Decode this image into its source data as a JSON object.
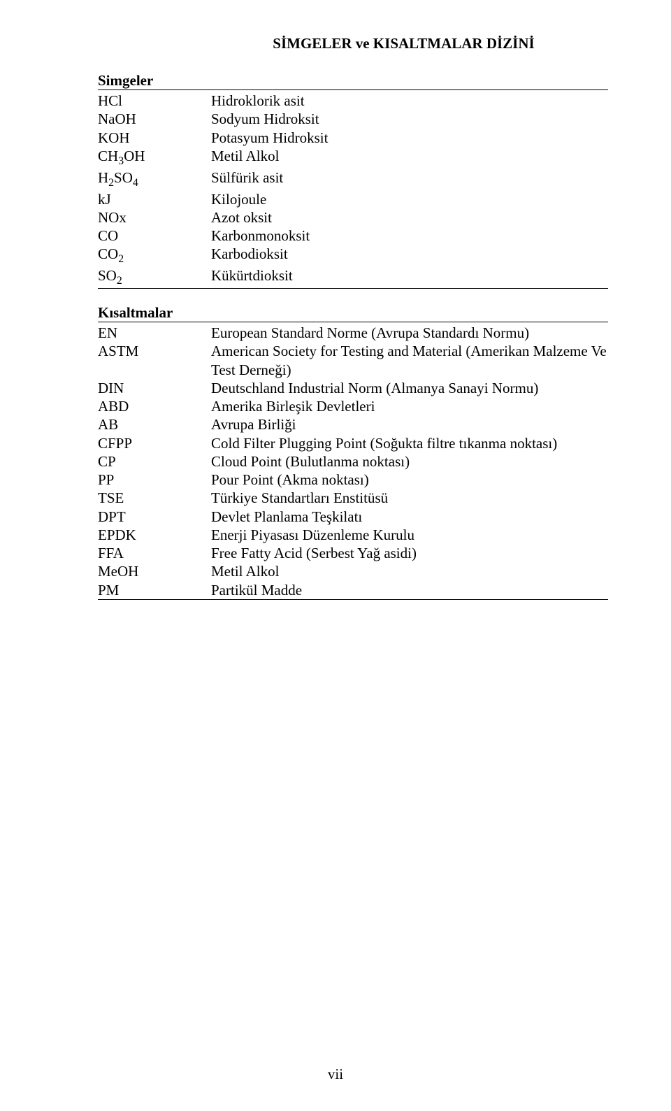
{
  "title": "SİMGELER ve KISALTMALAR DİZİNİ",
  "simgeler": {
    "heading": "Simgeler",
    "rows": [
      {
        "sym": "HCl",
        "def": "Hidroklorik asit"
      },
      {
        "sym": "NaOH",
        "def": "Sodyum Hidroksit"
      },
      {
        "sym": "KOH",
        "def": "Potasyum Hidroksit"
      },
      {
        "sym": "CH3OH",
        "sub": [
          [
            "CH",
            "3",
            "OH"
          ]
        ],
        "def": "Metil Alkol"
      },
      {
        "sym": "H2SO4",
        "sub": [
          [
            "H",
            "2",
            "SO"
          ],
          [
            "",
            "4",
            ""
          ]
        ],
        "def": "Sülfürik asit"
      },
      {
        "sym": "kJ",
        "def": "Kilojoule"
      },
      {
        "sym": "NOx",
        "def": "Azot oksit"
      },
      {
        "sym": "CO",
        "def": "Karbonmonoksit"
      },
      {
        "sym": "CO2",
        "sub": [
          [
            "CO",
            "2",
            ""
          ]
        ],
        "def": "Karbodioksit"
      },
      {
        "sym": "SO2",
        "sub": [
          [
            "SO",
            "2",
            ""
          ]
        ],
        "def": "Kükürtdioksit"
      }
    ]
  },
  "kisaltmalar": {
    "heading": "Kısaltmalar",
    "rows": [
      {
        "sym": "EN",
        "def": "European Standard Norme (Avrupa Standardı Normu)"
      },
      {
        "sym": "ASTM",
        "def": "American Society for Testing and Material (Amerikan Malzeme Ve Test Derneği)"
      },
      {
        "sym": "DIN",
        "def": "Deutschland Industrial Norm (Almanya Sanayi Normu)"
      },
      {
        "sym": "ABD",
        "def": "Amerika Birleşik Devletleri"
      },
      {
        "sym": "AB",
        "def": "Avrupa Birliği"
      },
      {
        "sym": "CFPP",
        "def": "Cold Filter Plugging Point (Soğukta filtre tıkanma noktası)"
      },
      {
        "sym": "CP",
        "def": "Cloud Point (Bulutlanma noktası)"
      },
      {
        "sym": "PP",
        "def": "Pour Point (Akma noktası)"
      },
      {
        "sym": "TSE",
        "def": "Türkiye Standartları Enstitüsü"
      },
      {
        "sym": "DPT",
        "def": "Devlet Planlama Teşkilatı"
      },
      {
        "sym": "EPDK",
        "def": "Enerji Piyasası Düzenleme Kurulu"
      },
      {
        "sym": "FFA",
        "def": "Free Fatty Acid (Serbest Yağ asidi)"
      },
      {
        "sym": "MeOH",
        "def": "Metil Alkol"
      },
      {
        "sym": "PM",
        "def": "Partikül Madde"
      }
    ]
  },
  "pageNumber": "vii"
}
